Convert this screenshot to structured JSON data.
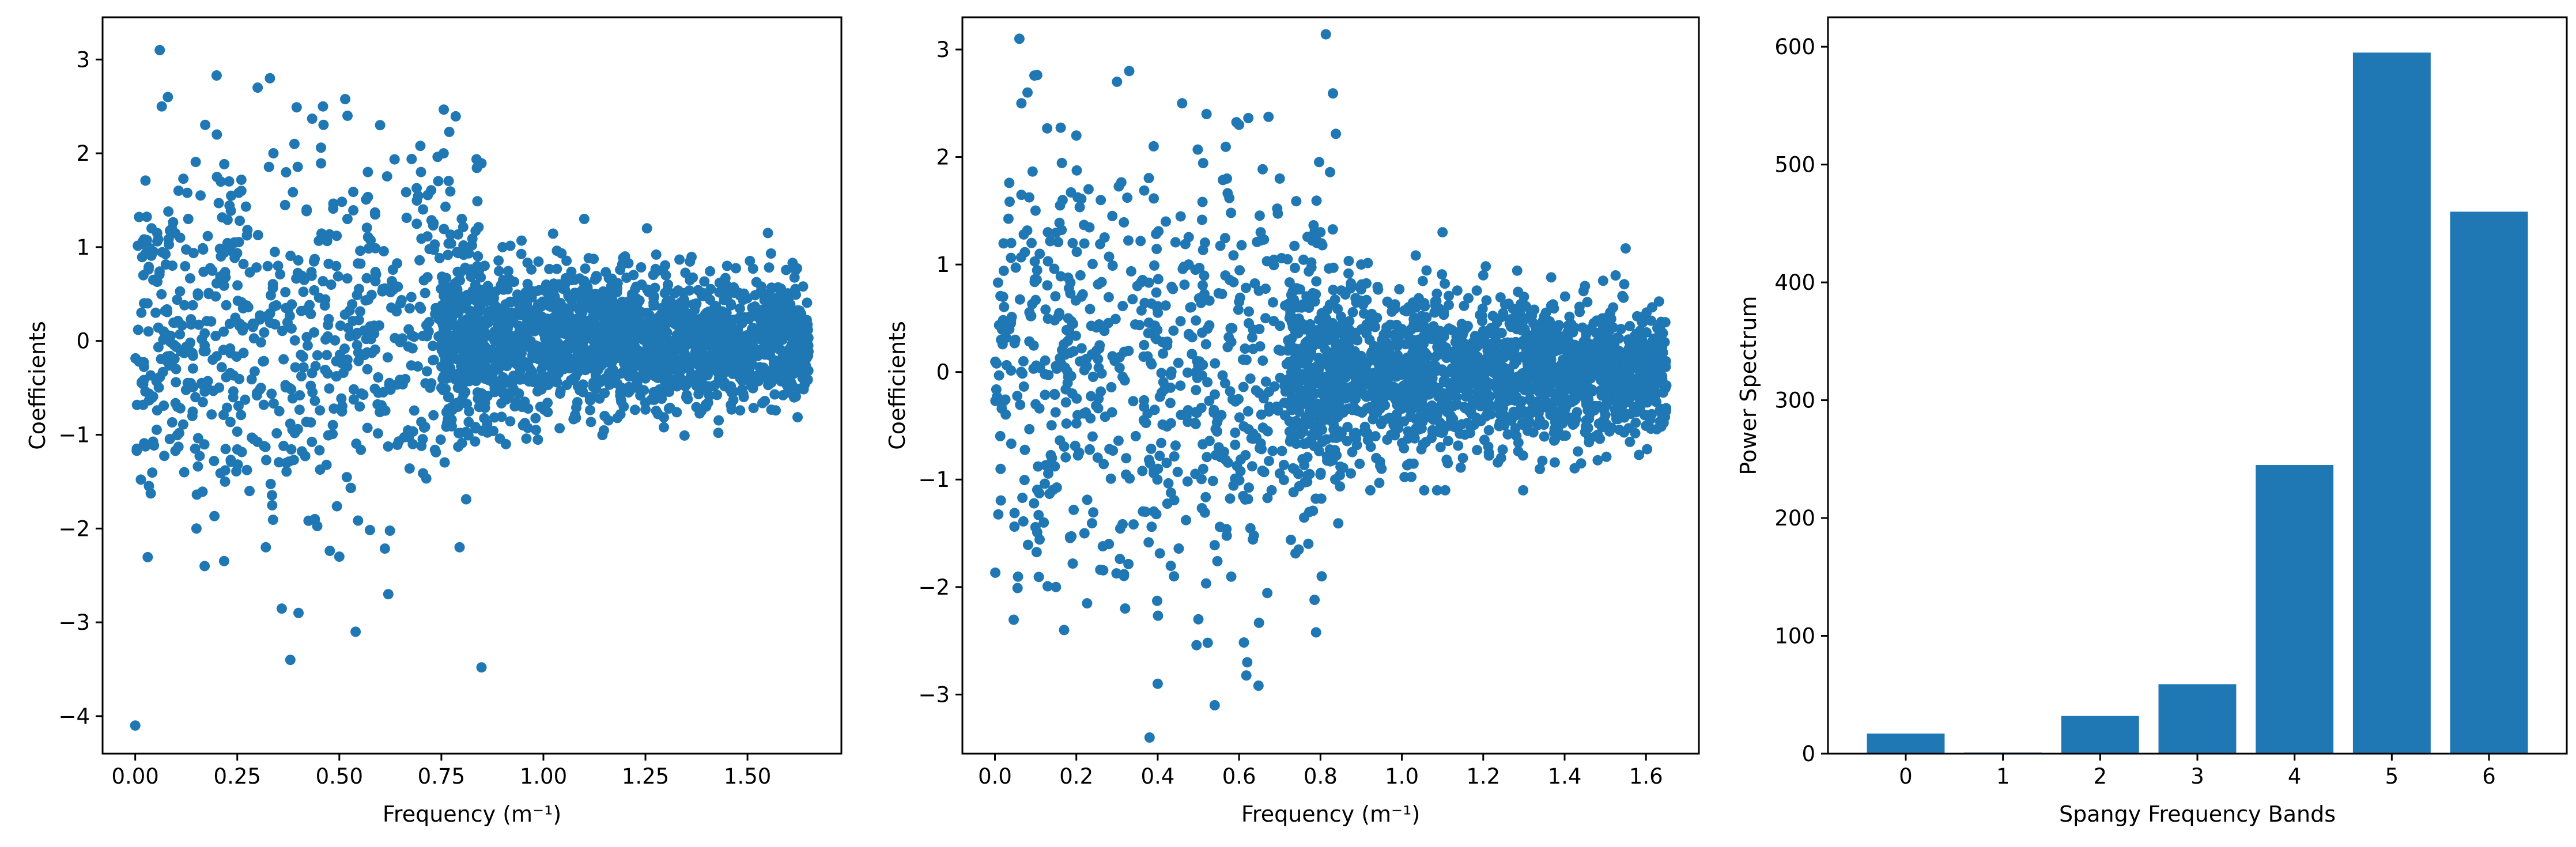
{
  "style": {
    "mark_color": "#1f77b4",
    "background": "#ffffff",
    "axis_color": "#000000"
  },
  "chart_data": [
    {
      "type": "scatter",
      "title": "",
      "xlabel": "Frequency (m⁻¹)",
      "ylabel": "Coefficients",
      "xlim": [
        -0.08,
        1.73
      ],
      "ylim": [
        -4.4,
        3.45
      ],
      "xticks": [
        0.0,
        0.25,
        0.5,
        0.75,
        1.0,
        1.25,
        1.5
      ],
      "xtick_labels": [
        "0.00",
        "0.25",
        "0.50",
        "0.75",
        "1.00",
        "1.25",
        "1.50"
      ],
      "yticks": [
        -4,
        -3,
        -2,
        -1,
        0,
        1,
        2,
        3
      ],
      "ytick_labels": [
        "−4",
        "−3",
        "−2",
        "−1",
        "0",
        "1",
        "2",
        "3"
      ],
      "grid": false,
      "points_description_note": "",
      "x": [
        0.0,
        0.015,
        0.02,
        0.03,
        0.04,
        0.05,
        0.06,
        0.065,
        0.07,
        0.08,
        0.09,
        0.1,
        0.11,
        0.12,
        0.13,
        0.14,
        0.15,
        0.16,
        0.17,
        0.18,
        0.19,
        0.2,
        0.21,
        0.22,
        0.23,
        0.24,
        0.25,
        0.26,
        0.28,
        0.3,
        0.32,
        0.33,
        0.35,
        0.37,
        0.38,
        0.39,
        0.4,
        0.42,
        0.44,
        0.46,
        0.48,
        0.5,
        0.52,
        0.54,
        0.55,
        0.57,
        0.6,
        0.62,
        0.65,
        0.68,
        0.7,
        0.72,
        0.75,
        0.8,
        0.85,
        0.9,
        0.95,
        1.0,
        1.05,
        1.1,
        1.15,
        1.2,
        1.25,
        1.3,
        1.35,
        1.4,
        1.45,
        1.5,
        1.55,
        1.6,
        1.63
      ],
      "y": [
        -4.1,
        0.3,
        0.7,
        0.4,
        1.2,
        0.3,
        3.1,
        2.5,
        0.1,
        2.6,
        1.2,
        -0.3,
        1.1,
        -1.4,
        1.3,
        -0.8,
        -2.0,
        1.55,
        -2.4,
        0.5,
        -0.2,
        2.2,
        0.9,
        -1.5,
        1.7,
        -0.6,
        0.2,
        1.6,
        -1.6,
        2.7,
        -2.2,
        2.8,
        0.8,
        -1.3,
        -3.4,
        2.1,
        -2.9,
        1.4,
        -1.9,
        2.5,
        0.6,
        -2.3,
        2.4,
        -3.1,
        -0.7,
        1.8,
        2.3,
        -2.7,
        0.4,
        -1.1,
        1.8,
        0.2,
        -0.5,
        1.3,
        -0.6,
        1.0,
        -0.9,
        0.4,
        -0.3,
        1.3,
        -0.8,
        0.9,
        -0.4,
        0.7,
        -0.6,
        0.3,
        0.8,
        -0.4,
        1.15,
        -0.5,
        0.2
      ],
      "dense_band": {
        "x_start": 0.75,
        "x_end": 1.65,
        "y_low": -0.7,
        "y_high": 0.7
      }
    },
    {
      "type": "scatter",
      "title": "",
      "xlabel": "Frequency (m⁻¹)",
      "ylabel": "Coefficients",
      "xlim": [
        -0.08,
        1.73
      ],
      "ylim": [
        -3.55,
        3.3
      ],
      "xticks": [
        0.0,
        0.2,
        0.4,
        0.6,
        0.8,
        1.0,
        1.2,
        1.4,
        1.6
      ],
      "xtick_labels": [
        "0.0",
        "0.2",
        "0.4",
        "0.6",
        "0.8",
        "1.0",
        "1.2",
        "1.4",
        "1.6"
      ],
      "yticks": [
        -3,
        -2,
        -1,
        0,
        1,
        2,
        3
      ],
      "ytick_labels": [
        "−3",
        "−2",
        "−1",
        "0",
        "1",
        "2",
        "3"
      ],
      "grid": false,
      "x": [
        0.015,
        0.02,
        0.03,
        0.04,
        0.05,
        0.06,
        0.065,
        0.07,
        0.08,
        0.09,
        0.1,
        0.11,
        0.12,
        0.13,
        0.14,
        0.15,
        0.16,
        0.17,
        0.18,
        0.19,
        0.2,
        0.21,
        0.22,
        0.23,
        0.24,
        0.25,
        0.26,
        0.28,
        0.3,
        0.32,
        0.33,
        0.35,
        0.37,
        0.38,
        0.39,
        0.4,
        0.42,
        0.44,
        0.46,
        0.48,
        0.5,
        0.52,
        0.54,
        0.55,
        0.57,
        0.6,
        0.62,
        0.65,
        0.68,
        0.7,
        0.72,
        0.75,
        0.8,
        0.85,
        0.9,
        0.95,
        1.0,
        1.05,
        1.1,
        1.15,
        1.2,
        1.25,
        1.3,
        1.35,
        1.4,
        1.45,
        1.5,
        1.55,
        1.6,
        1.63
      ],
      "y": [
        0.3,
        0.7,
        0.4,
        1.2,
        0.3,
        3.1,
        2.5,
        0.1,
        2.6,
        1.2,
        -0.3,
        1.1,
        -1.4,
        1.3,
        -0.8,
        -2.0,
        1.55,
        -2.4,
        0.5,
        -0.2,
        2.2,
        0.9,
        -1.5,
        1.7,
        -0.6,
        0.2,
        1.6,
        -1.6,
        2.7,
        -2.2,
        2.8,
        0.8,
        -1.3,
        -3.4,
        2.1,
        -2.9,
        1.4,
        -1.9,
        2.5,
        0.6,
        -2.3,
        2.4,
        -3.1,
        -0.7,
        1.8,
        2.3,
        -2.7,
        0.4,
        -1.1,
        1.8,
        0.2,
        -0.5,
        1.3,
        -0.6,
        1.0,
        -0.9,
        0.4,
        -0.3,
        1.3,
        -0.8,
        0.9,
        -0.4,
        0.7,
        -0.6,
        0.3,
        0.8,
        -0.4,
        1.15,
        -0.5,
        0.2
      ],
      "dense_band": {
        "x_start": 0.72,
        "x_end": 1.65,
        "y_low": -0.7,
        "y_high": 0.7
      }
    },
    {
      "type": "bar",
      "title": "",
      "xlabel": "Spangy Frequency Bands",
      "ylabel": "Power Spectrum",
      "categories": [
        "0",
        "1",
        "2",
        "3",
        "4",
        "5",
        "6"
      ],
      "values": [
        17,
        1,
        32,
        59,
        245,
        595,
        460
      ],
      "ylim": [
        0,
        625
      ],
      "yticks": [
        0,
        100,
        200,
        300,
        400,
        500,
        600
      ],
      "ytick_labels": [
        "0",
        "100",
        "200",
        "300",
        "400",
        "500",
        "600"
      ],
      "grid": false
    }
  ]
}
